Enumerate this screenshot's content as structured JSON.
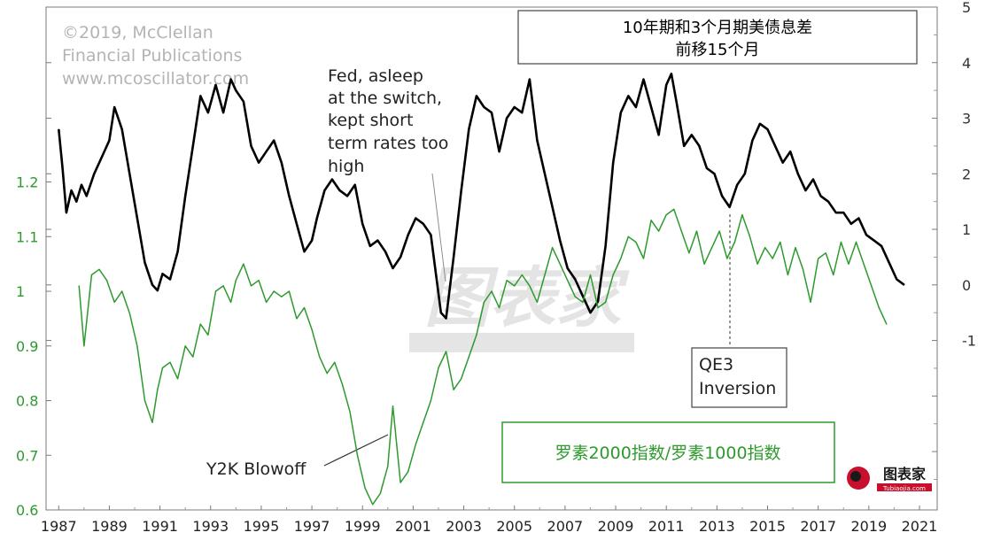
{
  "chart_data": {
    "type": "line",
    "title": "10年期和3个月期美债息差",
    "subtitle": "前移15个月",
    "watermark": [
      "©2019, McClellan",
      "Financial Publications",
      "www.mcoscillator.com"
    ],
    "overlay_logo_text": "图表家",
    "corner_logo_text": "图表家",
    "corner_logo_subtext": "Tubiaojia.com",
    "x_ticks": [
      "1987",
      "1989",
      "1991",
      "1993",
      "1995",
      "1997",
      "1999",
      "2001",
      "2003",
      "2005",
      "2007",
      "2009",
      "2011",
      "2013",
      "2015",
      "2017",
      "2019",
      "2021"
    ],
    "xlim": [
      1986.5,
      2021.7
    ],
    "y_right": {
      "ticks": [
        "5",
        "4",
        "3",
        "2",
        "1",
        "0",
        "-1"
      ],
      "lim": [
        -4.05,
        5
      ]
    },
    "y_left": {
      "ticks": [
        "1.2",
        "1.1",
        "1",
        "0.9",
        "0.8",
        "0.7",
        "0.6"
      ],
      "lim": [
        0.6,
        1.52
      ]
    },
    "series": [
      {
        "axis": "right",
        "color": "#000000",
        "x": [
          1987.0,
          1987.15,
          1987.3,
          1987.5,
          1987.7,
          1987.9,
          1988.1,
          1988.4,
          1988.7,
          1989.0,
          1989.2,
          1989.5,
          1989.8,
          1990.1,
          1990.4,
          1990.7,
          1990.9,
          1991.1,
          1991.4,
          1991.7,
          1992.0,
          1992.3,
          1992.6,
          1992.9,
          1993.2,
          1993.5,
          1993.8,
          1994.0,
          1994.3,
          1994.6,
          1994.9,
          1995.2,
          1995.5,
          1995.8,
          1996.1,
          1996.4,
          1996.7,
          1997.0,
          1997.2,
          1997.5,
          1997.8,
          1998.1,
          1998.4,
          1998.7,
          1999.0,
          1999.3,
          1999.6,
          1999.9,
          2000.2,
          2000.5,
          2000.8,
          2001.1,
          2001.4,
          2001.7,
          2001.9,
          2002.1,
          2002.3,
          2002.6,
          2002.9,
          2003.2,
          2003.5,
          2003.8,
          2004.1,
          2004.4,
          2004.7,
          2005.0,
          2005.3,
          2005.6,
          2005.9,
          2006.2,
          2006.5,
          2006.8,
          2007.1,
          2007.4,
          2007.7,
          2008.0,
          2008.3,
          2008.6,
          2008.9,
          2009.2,
          2009.5,
          2009.8,
          2010.1,
          2010.4,
          2010.7,
          2011.0,
          2011.2,
          2011.4,
          2011.7,
          2012.0,
          2012.3,
          2012.6,
          2012.9,
          2013.2,
          2013.5,
          2013.8,
          2014.1,
          2014.4,
          2014.7,
          2015.0,
          2015.3,
          2015.6,
          2015.9,
          2016.2,
          2016.5,
          2016.8,
          2017.1,
          2017.4,
          2017.7,
          2018.0,
          2018.3,
          2018.6,
          2018.9,
          2019.2,
          2019.5,
          2019.8,
          2020.1,
          2020.4
        ],
        "values": [
          2.8,
          2.1,
          1.3,
          1.7,
          1.5,
          1.8,
          1.6,
          2.0,
          2.3,
          2.6,
          3.2,
          2.8,
          2.0,
          1.2,
          0.4,
          0.0,
          -0.1,
          0.2,
          0.1,
          0.6,
          1.6,
          2.5,
          3.4,
          3.1,
          3.6,
          3.1,
          3.7,
          3.5,
          3.3,
          2.5,
          2.2,
          2.4,
          2.6,
          2.2,
          1.6,
          1.1,
          0.6,
          0.8,
          1.2,
          1.7,
          1.9,
          1.7,
          1.6,
          1.8,
          1.1,
          0.7,
          0.8,
          0.6,
          0.3,
          0.5,
          0.9,
          1.2,
          1.1,
          0.9,
          0.2,
          -0.5,
          -0.6,
          0.5,
          1.7,
          2.8,
          3.4,
          3.2,
          3.1,
          2.4,
          3.0,
          3.2,
          3.1,
          3.7,
          2.6,
          2.0,
          1.4,
          0.8,
          0.3,
          0.1,
          -0.2,
          -0.5,
          -0.3,
          0.7,
          2.2,
          3.1,
          3.4,
          3.2,
          3.7,
          3.2,
          2.7,
          3.6,
          3.8,
          3.3,
          2.5,
          2.7,
          2.5,
          2.1,
          2.0,
          1.6,
          1.4,
          1.8,
          2.0,
          2.6,
          2.9,
          2.8,
          2.5,
          2.2,
          2.4,
          2.0,
          1.7,
          1.9,
          1.6,
          1.5,
          1.3,
          1.3,
          1.1,
          1.2,
          0.9,
          0.8,
          0.7,
          0.4,
          0.1,
          0.0
        ]
      },
      {
        "axis": "left",
        "color": "#2e9a2e",
        "x": [
          1987.8,
          1988.0,
          1988.3,
          1988.6,
          1988.9,
          1989.2,
          1989.5,
          1989.8,
          1990.1,
          1990.4,
          1990.7,
          1990.9,
          1991.1,
          1991.4,
          1991.7,
          1992.0,
          1992.3,
          1992.6,
          1992.9,
          1993.2,
          1993.5,
          1993.8,
          1994.0,
          1994.3,
          1994.6,
          1994.9,
          1995.2,
          1995.5,
          1995.8,
          1996.1,
          1996.4,
          1996.7,
          1997.0,
          1997.3,
          1997.6,
          1997.9,
          1998.2,
          1998.5,
          1998.8,
          1999.1,
          1999.4,
          1999.7,
          2000.0,
          2000.2,
          2000.5,
          2000.8,
          2001.1,
          2001.4,
          2001.7,
          2002.0,
          2002.3,
          2002.6,
          2002.9,
          2003.2,
          2003.5,
          2003.8,
          2004.1,
          2004.4,
          2004.7,
          2005.0,
          2005.3,
          2005.6,
          2005.9,
          2006.2,
          2006.5,
          2006.8,
          2007.1,
          2007.4,
          2007.7,
          2008.0,
          2008.3,
          2008.6,
          2008.9,
          2009.2,
          2009.5,
          2009.8,
          2010.1,
          2010.4,
          2010.7,
          2011.0,
          2011.3,
          2011.6,
          2011.9,
          2012.2,
          2012.5,
          2012.8,
          2013.1,
          2013.4,
          2013.7,
          2014.0,
          2014.3,
          2014.6,
          2014.9,
          2015.2,
          2015.5,
          2015.8,
          2016.1,
          2016.4,
          2016.7,
          2017.0,
          2017.3,
          2017.6,
          2017.9,
          2018.2,
          2018.5,
          2018.8,
          2019.1,
          2019.4,
          2019.7
        ],
        "values": [
          1.01,
          0.9,
          1.03,
          1.04,
          1.02,
          0.98,
          1.0,
          0.96,
          0.9,
          0.8,
          0.76,
          0.82,
          0.86,
          0.87,
          0.84,
          0.9,
          0.88,
          0.94,
          0.92,
          1.0,
          1.01,
          0.98,
          1.02,
          1.05,
          1.01,
          1.02,
          0.98,
          1.0,
          0.99,
          1.0,
          0.95,
          0.97,
          0.93,
          0.88,
          0.85,
          0.87,
          0.83,
          0.78,
          0.7,
          0.64,
          0.61,
          0.63,
          0.68,
          0.79,
          0.65,
          0.67,
          0.72,
          0.76,
          0.8,
          0.86,
          0.89,
          0.82,
          0.84,
          0.88,
          0.92,
          0.98,
          1.0,
          0.97,
          1.02,
          1.01,
          1.03,
          1.01,
          0.98,
          1.03,
          1.08,
          1.05,
          1.02,
          0.99,
          0.98,
          1.03,
          0.97,
          0.98,
          1.03,
          1.06,
          1.1,
          1.09,
          1.06,
          1.13,
          1.11,
          1.14,
          1.15,
          1.11,
          1.07,
          1.11,
          1.05,
          1.08,
          1.11,
          1.06,
          1.09,
          1.14,
          1.1,
          1.05,
          1.08,
          1.06,
          1.09,
          1.03,
          1.08,
          1.04,
          0.98,
          1.06,
          1.07,
          1.03,
          1.09,
          1.05,
          1.09,
          1.05,
          1.01,
          0.97,
          0.94
        ]
      }
    ],
    "annotations": [
      {
        "id": "fed",
        "lines": [
          "Fed, asleep",
          "at the switch,",
          "kept short",
          "term rates too",
          "high"
        ]
      },
      {
        "id": "qe3",
        "lines": [
          "QE3",
          "Inversion"
        ]
      },
      {
        "id": "y2k",
        "lines": [
          "Y2K Blowoff"
        ]
      }
    ],
    "green_label": "罗素2000指数/罗素1000指数"
  }
}
